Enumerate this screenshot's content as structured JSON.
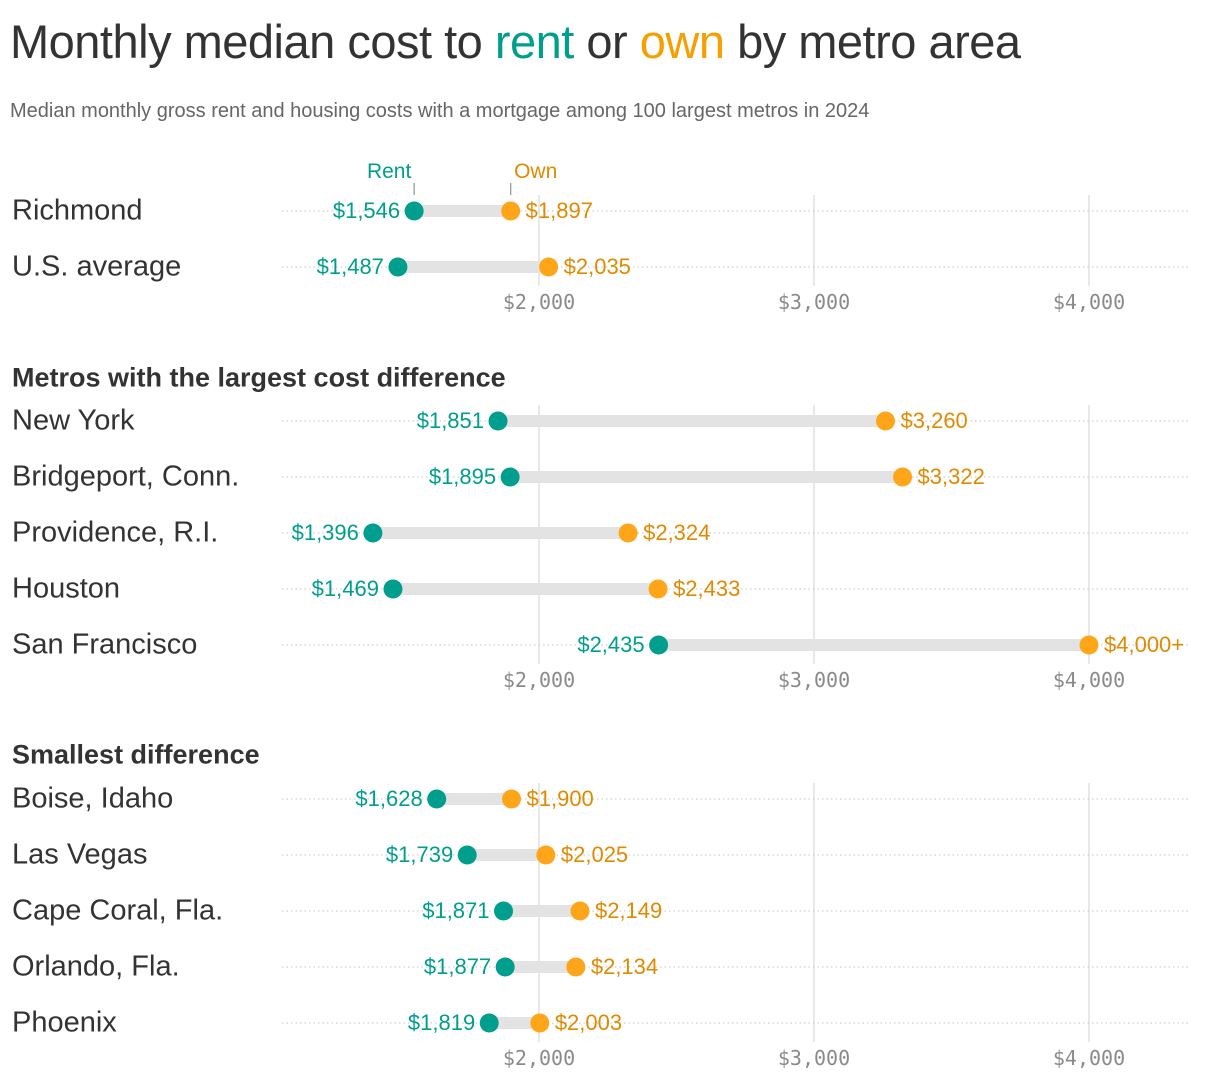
{
  "title": {
    "pre": "Monthly median cost to ",
    "rent": "rent",
    "mid": " or ",
    "own": "own",
    "post": " by metro area"
  },
  "subtitle": "Median monthly gross rent and housing costs with a mortgage among 100 largest metros in 2024",
  "colors": {
    "rent": "#009e8c",
    "own_dot": "#ffa51a",
    "own_text": "#e08a00",
    "bar": "#e3e3e3",
    "grid": "#e0e0e0"
  },
  "chart_data": {
    "type": "dumbbell",
    "legend": {
      "rent": "Rent",
      "own": "Own"
    },
    "xlim": [
      1100,
      4350
    ],
    "xticks": [
      2000,
      3000,
      4000
    ],
    "xtick_labels": [
      "$2,000",
      "$3,000",
      "$4,000"
    ],
    "grid": true,
    "sections": [
      {
        "heading": "",
        "rows": [
          {
            "label": "Richmond",
            "rent": 1546,
            "own": 1897
          },
          {
            "label": "U.S. average",
            "rent": 1487,
            "own": 2035
          }
        ]
      },
      {
        "heading": "Metros with the largest cost difference",
        "rows": [
          {
            "label": "New York",
            "rent": 1851,
            "own": 3260
          },
          {
            "label": "Bridgeport, Conn.",
            "rent": 1895,
            "own": 3322
          },
          {
            "label": "Providence, R.I.",
            "rent": 1396,
            "own": 2324
          },
          {
            "label": "Houston",
            "rent": 1469,
            "own": 2433
          },
          {
            "label": "San Francisco",
            "rent": 2435,
            "own": 4000,
            "own_label": "$4,000+"
          }
        ]
      },
      {
        "heading": "Smallest difference",
        "rows": [
          {
            "label": "Boise, Idaho",
            "rent": 1628,
            "own": 1900
          },
          {
            "label": "Las Vegas",
            "rent": 1739,
            "own": 2025
          },
          {
            "label": "Cape Coral, Fla.",
            "rent": 1871,
            "own": 2149
          },
          {
            "label": "Orlando, Fla.",
            "rent": 1877,
            "own": 2134
          },
          {
            "label": "Phoenix",
            "rent": 1819,
            "own": 2003
          }
        ]
      }
    ]
  }
}
